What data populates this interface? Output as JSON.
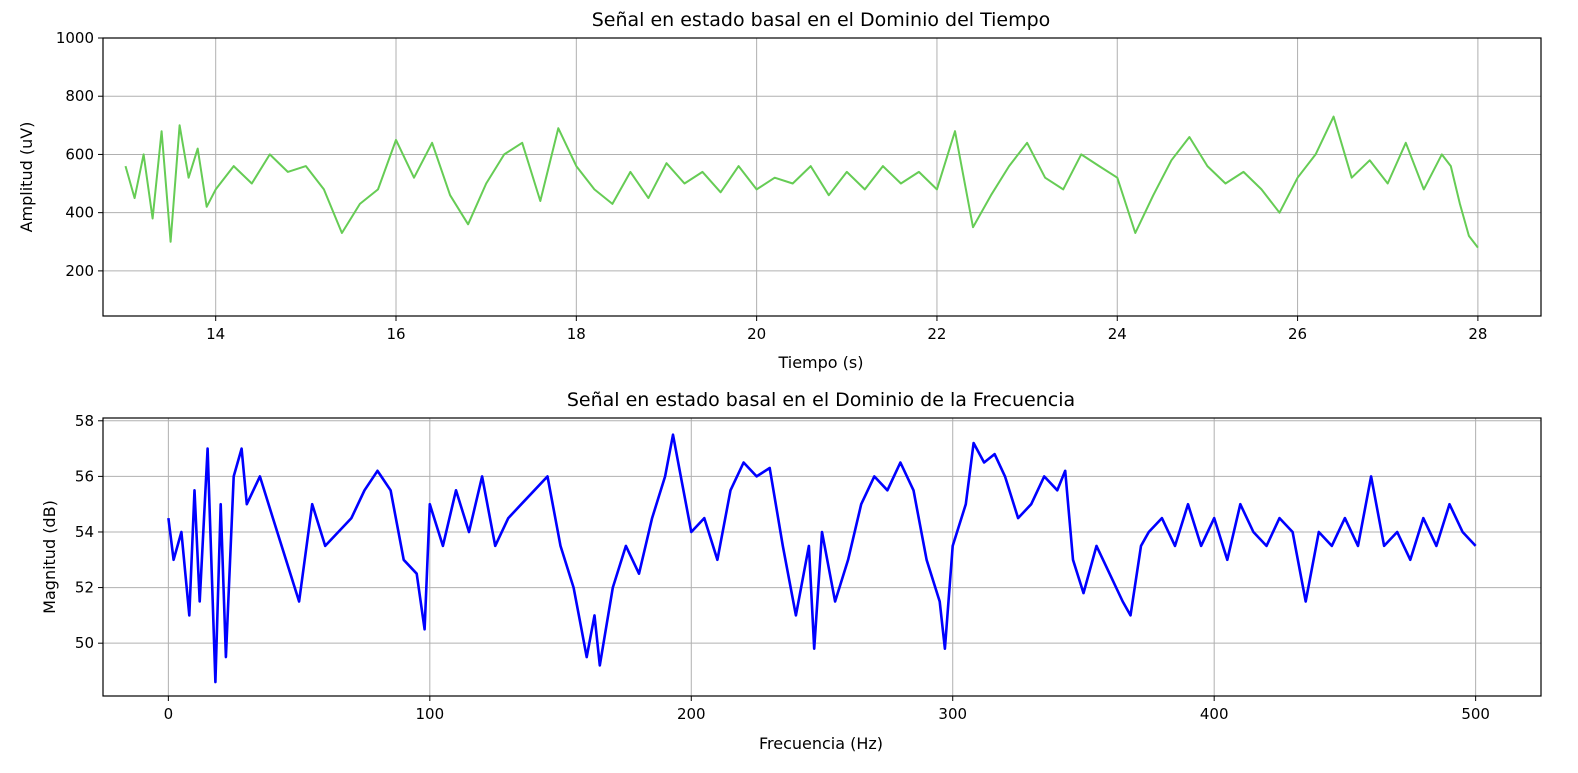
{
  "chart_data": [
    {
      "type": "line",
      "title": "Señal en estado basal en el Dominio del Tiempo",
      "xlabel": "Tiempo (s)",
      "ylabel": "Amplitud (uV)",
      "xlim": [
        12.75,
        28.7
      ],
      "ylim": [
        45,
        1000
      ],
      "xticks": [
        14,
        16,
        18,
        20,
        22,
        24,
        26,
        28
      ],
      "yticks": [
        200,
        400,
        600,
        800,
        1000
      ],
      "grid": true,
      "series": [
        {
          "color": "#66cc55",
          "x": [
            13.0,
            13.1,
            13.2,
            13.3,
            13.4,
            13.5,
            13.6,
            13.7,
            13.8,
            13.9,
            14.0,
            14.2,
            14.4,
            14.6,
            14.8,
            15.0,
            15.2,
            15.4,
            15.6,
            15.8,
            16.0,
            16.2,
            16.4,
            16.6,
            16.8,
            17.0,
            17.2,
            17.4,
            17.6,
            17.8,
            18.0,
            18.2,
            18.4,
            18.6,
            18.8,
            19.0,
            19.2,
            19.4,
            19.6,
            19.8,
            20.0,
            20.2,
            20.4,
            20.6,
            20.8,
            21.0,
            21.2,
            21.4,
            21.6,
            21.8,
            22.0,
            22.2,
            22.4,
            22.6,
            22.8,
            23.0,
            23.2,
            23.4,
            23.6,
            23.8,
            24.0,
            24.2,
            24.4,
            24.6,
            24.8,
            25.0,
            25.2,
            25.4,
            25.6,
            25.8,
            26.0,
            26.2,
            26.4,
            26.6,
            26.8,
            27.0,
            27.2,
            27.4,
            27.6,
            27.7,
            27.8,
            27.9,
            28.0
          ],
          "values": [
            560,
            450,
            600,
            380,
            680,
            300,
            700,
            520,
            620,
            420,
            480,
            560,
            500,
            600,
            540,
            560,
            480,
            330,
            430,
            480,
            650,
            520,
            640,
            460,
            360,
            500,
            600,
            640,
            440,
            690,
            560,
            480,
            430,
            540,
            450,
            570,
            500,
            540,
            470,
            560,
            480,
            520,
            500,
            560,
            460,
            540,
            480,
            560,
            500,
            540,
            480,
            680,
            350,
            460,
            560,
            640,
            520,
            480,
            600,
            560,
            520,
            330,
            460,
            580,
            660,
            560,
            500,
            540,
            480,
            400,
            520,
            600,
            730,
            520,
            580,
            500,
            640,
            480,
            600,
            560,
            430,
            320,
            280
          ]
        }
      ]
    },
    {
      "type": "line",
      "title": "Señal en estado basal en el Dominio de la Frecuencia",
      "xlabel": "Frecuencia (Hz)",
      "ylabel": "Magnitud (dB)",
      "xlim": [
        -25,
        525
      ],
      "ylim": [
        48.1,
        58.1
      ],
      "xticks": [
        0,
        100,
        200,
        300,
        400,
        500
      ],
      "yticks": [
        50,
        52,
        54,
        56,
        58
      ],
      "grid": true,
      "series": [
        {
          "color": "#0000ff",
          "x": [
            0,
            2,
            5,
            8,
            10,
            12,
            15,
            18,
            20,
            22,
            25,
            28,
            30,
            35,
            40,
            45,
            50,
            55,
            60,
            65,
            70,
            75,
            80,
            85,
            90,
            95,
            98,
            100,
            105,
            110,
            115,
            120,
            125,
            130,
            135,
            140,
            145,
            150,
            155,
            158,
            160,
            163,
            165,
            170,
            175,
            180,
            185,
            190,
            193,
            196,
            200,
            205,
            210,
            215,
            220,
            225,
            230,
            235,
            240,
            245,
            247,
            250,
            255,
            260,
            265,
            270,
            275,
            280,
            285,
            290,
            295,
            297,
            300,
            305,
            308,
            312,
            316,
            320,
            325,
            330,
            335,
            340,
            343,
            346,
            350,
            355,
            360,
            365,
            368,
            372,
            375,
            380,
            385,
            390,
            395,
            400,
            405,
            410,
            415,
            420,
            425,
            430,
            435,
            440,
            445,
            450,
            455,
            460,
            465,
            470,
            475,
            480,
            485,
            490,
            495,
            500
          ],
          "values": [
            54.5,
            53.0,
            54.0,
            51.0,
            55.5,
            51.5,
            57.0,
            48.6,
            55.0,
            49.5,
            56.0,
            57.0,
            55.0,
            56.0,
            54.5,
            53.0,
            51.5,
            55.0,
            53.5,
            54.0,
            54.5,
            55.5,
            56.2,
            55.5,
            53.0,
            52.5,
            50.5,
            55.0,
            53.5,
            55.5,
            54.0,
            56.0,
            53.5,
            54.5,
            55.0,
            55.5,
            56.0,
            53.5,
            52.0,
            50.5,
            49.5,
            51.0,
            49.2,
            52.0,
            53.5,
            52.5,
            54.5,
            56.0,
            57.5,
            56.0,
            54.0,
            54.5,
            53.0,
            55.5,
            56.5,
            56.0,
            56.3,
            53.5,
            51.0,
            53.5,
            49.8,
            54.0,
            51.5,
            53.0,
            55.0,
            56.0,
            55.5,
            56.5,
            55.5,
            53.0,
            51.5,
            49.8,
            53.5,
            55.0,
            57.2,
            56.5,
            56.8,
            56.0,
            54.5,
            55.0,
            56.0,
            55.5,
            56.2,
            53.0,
            51.8,
            53.5,
            52.5,
            51.5,
            51.0,
            53.5,
            54.0,
            54.5,
            53.5,
            55.0,
            53.5,
            54.5,
            53.0,
            55.0,
            54.0,
            53.5,
            54.5,
            54.0,
            51.5,
            54.0,
            53.5,
            54.5,
            53.5,
            56.0,
            53.5,
            54.0,
            53.0,
            54.5,
            53.5,
            55.0,
            54.0,
            53.5
          ]
        }
      ]
    }
  ]
}
